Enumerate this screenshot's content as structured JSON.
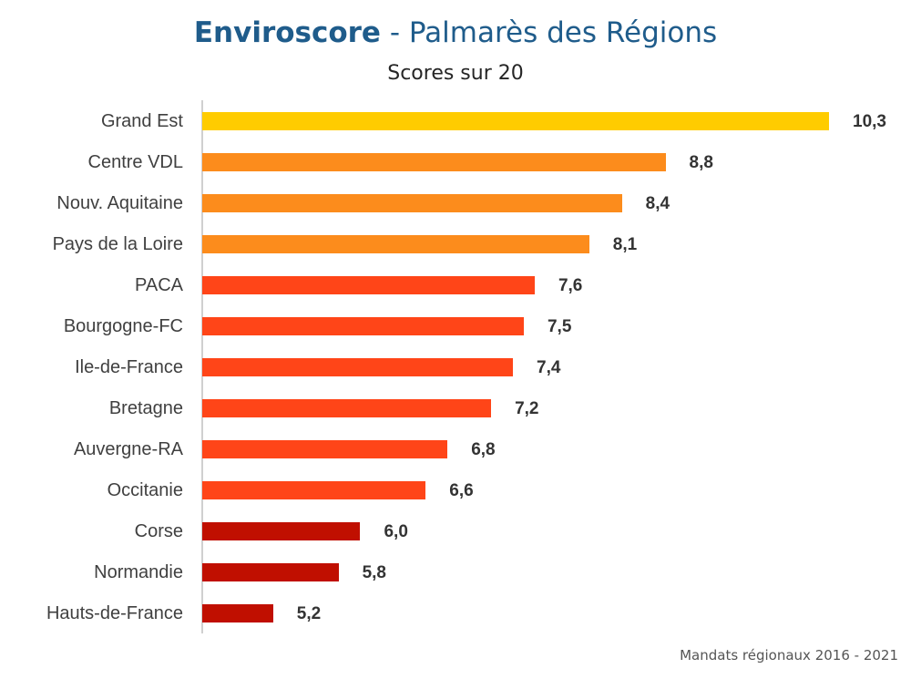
{
  "chart_data": {
    "type": "bar",
    "orientation": "horizontal",
    "title_bold": "Enviroscore",
    "title_rest": " - Palmarès des Régions",
    "subtitle": "Scores sur 20",
    "footnote": "Mandats régionaux 2016 - 2021",
    "xlim": [
      4.55,
      10.3
    ],
    "grid": false,
    "categories": [
      "Grand Est",
      "Centre VDL",
      "Nouv. Aquitaine",
      "Pays de la Loire",
      "PACA",
      "Bourgogne-FC",
      "Ile-de-France",
      "Bretagne",
      "Auvergne-RA",
      "Occitanie",
      "Corse",
      "Normandie",
      "Hauts-de-France"
    ],
    "values": [
      10.3,
      8.8,
      8.4,
      8.1,
      7.6,
      7.5,
      7.4,
      7.2,
      6.8,
      6.6,
      6.0,
      5.8,
      5.2
    ],
    "value_labels": [
      "10,3",
      "8,8",
      "8,4",
      "8,1",
      "7,6",
      "7,5",
      "7,4",
      "7,2",
      "6,8",
      "6,6",
      "6,0",
      "5,8",
      "5,2"
    ],
    "colors": [
      "#ffcc00",
      "#fc8c1c",
      "#fc8c1c",
      "#fc8c1c",
      "#ff4518",
      "#ff4518",
      "#ff4518",
      "#ff4518",
      "#ff4518",
      "#ff4518",
      "#c00f00",
      "#c00f00",
      "#c00f00"
    ]
  }
}
